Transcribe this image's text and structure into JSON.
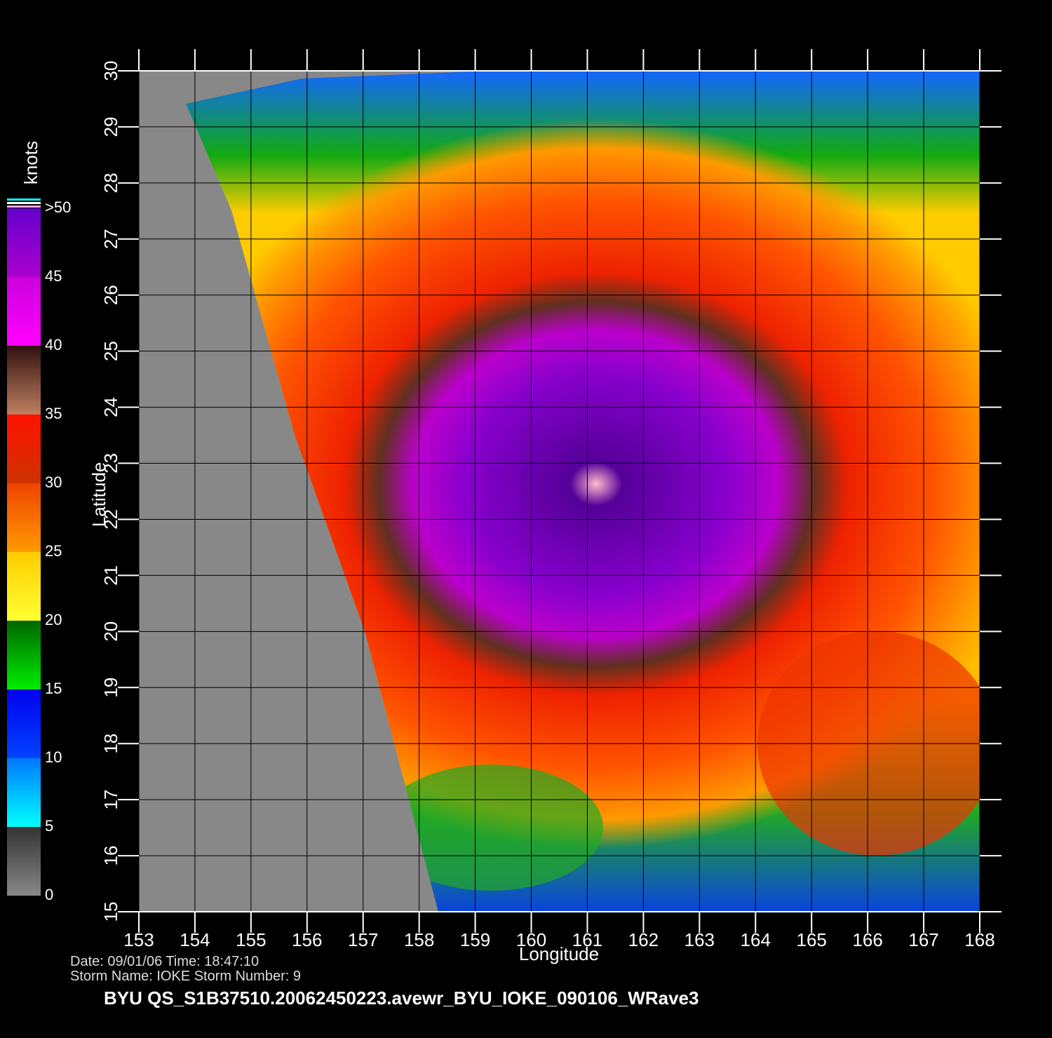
{
  "map": {
    "xlabel": "Longitude",
    "ylabel": "Latitude",
    "xlim": [
      153,
      168
    ],
    "ylim": [
      15,
      30
    ],
    "xticks": [
      153,
      154,
      155,
      156,
      157,
      158,
      159,
      160,
      161,
      162,
      163,
      164,
      165,
      166,
      167,
      168
    ],
    "yticks": [
      15,
      16,
      17,
      18,
      19,
      20,
      21,
      22,
      23,
      24,
      25,
      26,
      27,
      28,
      29,
      30
    ],
    "grid": true,
    "colorbar": {
      "title": "knots",
      "lim": [
        0,
        50
      ],
      "ticks": [
        0,
        5,
        10,
        15,
        20,
        25,
        30,
        35,
        40,
        45,
        {
          "value": 50,
          "label": ">50"
        }
      ],
      "colors": [
        [
          "#888888",
          "#333333"
        ],
        [
          "#00ffff",
          "#0077ff"
        ],
        [
          "#0044ff",
          "#0000ee"
        ],
        [
          "#00ee00",
          "#006600"
        ],
        [
          "#ffff33",
          "#ffcc00"
        ],
        [
          "#ff9900",
          "#ee4400"
        ],
        [
          "#cc3300",
          "#ff1100"
        ],
        [
          "#c08060",
          "#301010"
        ],
        [
          "#ff00ff",
          "#cc00dd"
        ],
        [
          "#aa00cc",
          "#6600cc"
        ]
      ]
    }
  },
  "info": {
    "lines": [
      "Date: 09/01/06   Time: 18:47:10",
      "Storm  Name:  IOKE    Storm  Number:  9"
    ],
    "footer": "BYU  QS_S1B37510.20062450223.avewr_BYU_IOKE_090106_WRave3"
  }
}
